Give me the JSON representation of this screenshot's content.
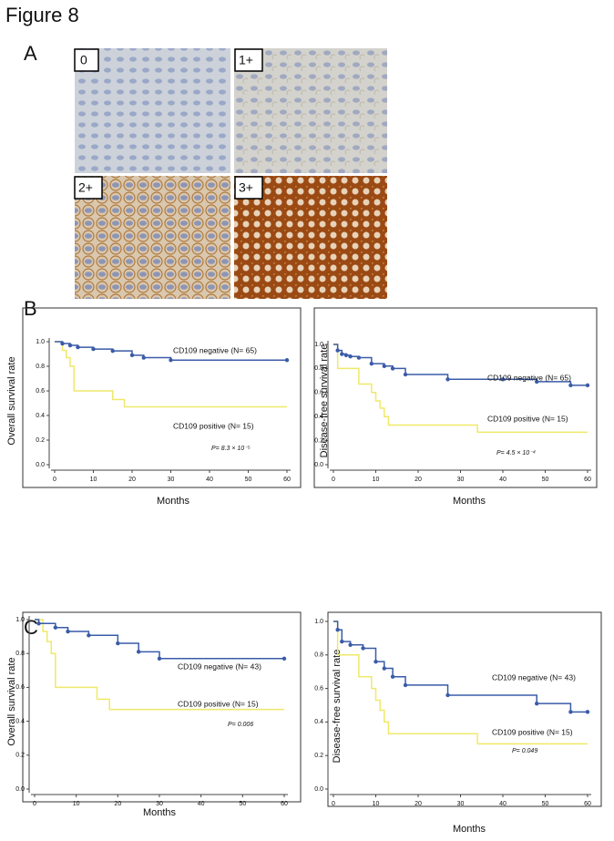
{
  "figure_title": "Figure 8",
  "panel_labels": [
    "A",
    "B",
    "C"
  ],
  "images": [
    {
      "label": "0"
    },
    {
      "label": "1+"
    },
    {
      "label": "2+"
    },
    {
      "label": "3+"
    }
  ],
  "chart_data": [
    {
      "type": "line",
      "step": true,
      "ylabel": "Overall survival rate",
      "xlabel": "Months",
      "annotation": "P= 8.3 × 10⁻⁵",
      "xlim": [
        0,
        60
      ],
      "xticks": [
        0,
        10,
        20,
        30,
        40,
        50,
        60
      ],
      "ylim": [
        0,
        1
      ],
      "yticks": [
        {
          "value": 0,
          "label": "0.0"
        },
        0.2,
        0.4,
        0.6,
        0.8,
        {
          "value": 1,
          "label": "1.0"
        }
      ],
      "series": [
        {
          "name": "CD109 negative (N= 65)",
          "color": "#3a5ba8",
          "markers": true,
          "x": [
            0,
            2,
            4,
            6,
            10,
            15,
            20,
            23,
            30,
            60
          ],
          "values": [
            1,
            0.985,
            0.97,
            0.955,
            0.94,
            0.925,
            0.89,
            0.87,
            0.85,
            0.85
          ]
        },
        {
          "name": "CD109 positive (N= 15)",
          "color": "#efe96a",
          "markers": false,
          "x": [
            0,
            2,
            3,
            4,
            5,
            15,
            18,
            60
          ],
          "values": [
            1,
            0.93,
            0.87,
            0.8,
            0.6,
            0.53,
            0.47,
            0.47
          ]
        }
      ]
    },
    {
      "type": "line",
      "step": true,
      "ylabel": "Disease-free  survival rate",
      "xlabel": "Months",
      "annotation": "P= 4.5 × 10⁻⁴",
      "xlim": [
        0,
        60
      ],
      "xticks": [
        0,
        10,
        20,
        30,
        40,
        50,
        60
      ],
      "ylim": [
        0,
        1
      ],
      "yticks": [
        {
          "value": 0,
          "label": "0.0"
        },
        0.2,
        0.4,
        0.6,
        0.8,
        {
          "value": 1,
          "label": "1.0"
        }
      ],
      "series": [
        {
          "name": "CD109 negative (N= 65)",
          "color": "#3a5ba8",
          "markers": true,
          "x": [
            0,
            1,
            2,
            3,
            4,
            6,
            9,
            12,
            14,
            17,
            27,
            40,
            48,
            56,
            60
          ],
          "values": [
            1,
            0.95,
            0.92,
            0.91,
            0.9,
            0.89,
            0.84,
            0.82,
            0.8,
            0.75,
            0.71,
            0.71,
            0.69,
            0.66,
            0.66
          ]
        },
        {
          "name": "CD109 positive (N= 15)",
          "color": "#efe96a",
          "markers": false,
          "x": [
            0,
            1,
            6,
            9,
            10,
            11,
            12,
            13,
            34,
            60
          ],
          "values": [
            1,
            0.8,
            0.67,
            0.6,
            0.53,
            0.47,
            0.4,
            0.33,
            0.27,
            0.27
          ]
        }
      ]
    },
    {
      "type": "line",
      "step": true,
      "ylabel": "Overall survival rate",
      "xlabel": "Months",
      "annotation": "P= 0.006",
      "xlim": [
        0,
        60
      ],
      "xticks": [
        0,
        10,
        20,
        30,
        40,
        50,
        60
      ],
      "ylim": [
        0,
        1
      ],
      "yticks": [
        {
          "value": 0,
          "label": "0.0"
        },
        0.2,
        0.4,
        0.6,
        0.8,
        {
          "value": 1,
          "label": "1.0"
        }
      ],
      "series": [
        {
          "name": "CD109 negative (N= 43)",
          "color": "#3a5ba8",
          "markers": true,
          "x": [
            0,
            1,
            5,
            8,
            13,
            20,
            25,
            30,
            60
          ],
          "values": [
            1,
            0.977,
            0.953,
            0.93,
            0.907,
            0.86,
            0.81,
            0.77,
            0.77
          ]
        },
        {
          "name": "CD109 positive (N= 15)",
          "color": "#efe96a",
          "markers": false,
          "x": [
            0,
            2,
            3,
            4,
            5,
            15,
            18,
            60
          ],
          "values": [
            1,
            0.93,
            0.87,
            0.8,
            0.6,
            0.53,
            0.47,
            0.47
          ]
        }
      ]
    },
    {
      "type": "line",
      "step": true,
      "ylabel": "Disease-free  survival rate",
      "xlabel": "Months",
      "annotation": "P= 0.049",
      "xlim": [
        0,
        60
      ],
      "xticks": [
        0,
        10,
        20,
        30,
        40,
        50,
        60
      ],
      "ylim": [
        0,
        1
      ],
      "yticks": [
        {
          "value": 0,
          "label": "0.0"
        },
        0.2,
        0.4,
        0.6,
        0.8,
        {
          "value": 1,
          "label": "1.0"
        }
      ],
      "series": [
        {
          "name": "CD109 negative (N= 43)",
          "color": "#3a5ba8",
          "markers": true,
          "x": [
            0,
            1,
            2,
            4,
            7,
            10,
            12,
            14,
            17,
            27,
            48,
            56,
            60
          ],
          "values": [
            1,
            0.95,
            0.88,
            0.86,
            0.84,
            0.76,
            0.72,
            0.67,
            0.62,
            0.56,
            0.51,
            0.46,
            0.46
          ]
        },
        {
          "name": "CD109 positive (N= 15)",
          "color": "#efe96a",
          "markers": false,
          "x": [
            0,
            1,
            6,
            9,
            10,
            11,
            12,
            13,
            34,
            60
          ],
          "values": [
            1,
            0.8,
            0.67,
            0.6,
            0.53,
            0.47,
            0.4,
            0.33,
            0.27,
            0.27
          ]
        }
      ]
    }
  ]
}
